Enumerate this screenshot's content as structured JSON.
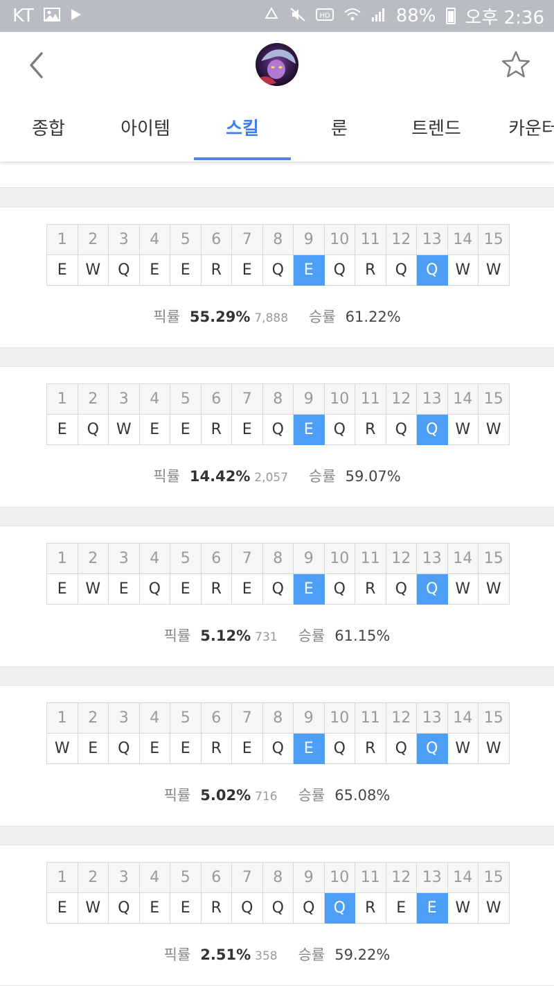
{
  "status_bar": {
    "carrier": "KT",
    "battery": "88%",
    "time": "오후 2:36",
    "colors": {
      "background": "#b9bdc3"
    }
  },
  "header": {
    "icons": {
      "back": "chevron-left-icon",
      "favorite": "star-outline-icon"
    },
    "avatar": "champion-avatar"
  },
  "tabs": [
    {
      "label": "종합",
      "active": false
    },
    {
      "label": "아이템",
      "active": false
    },
    {
      "label": "스킬",
      "active": true
    },
    {
      "label": "룬",
      "active": false
    },
    {
      "label": "트렌드",
      "active": false
    },
    {
      "label": "카운터",
      "active": false
    }
  ],
  "colors": {
    "accent": "#4b86e8",
    "highlight_cell": "#4c9ff5"
  },
  "labels": {
    "pick_rate": "픽률",
    "win_rate": "승률"
  },
  "skill_builds": [
    {
      "levels": [
        "1",
        "2",
        "3",
        "4",
        "5",
        "6",
        "7",
        "8",
        "9",
        "10",
        "11",
        "12",
        "13",
        "14",
        "15"
      ],
      "skills": [
        "E",
        "W",
        "Q",
        "E",
        "E",
        "R",
        "E",
        "Q",
        "E",
        "Q",
        "R",
        "Q",
        "Q",
        "W",
        "W"
      ],
      "highlighted_levels": [
        9,
        13
      ],
      "pick_rate": "55.29%",
      "games": "7,888",
      "win_rate": "61.22%"
    },
    {
      "levels": [
        "1",
        "2",
        "3",
        "4",
        "5",
        "6",
        "7",
        "8",
        "9",
        "10",
        "11",
        "12",
        "13",
        "14",
        "15"
      ],
      "skills": [
        "E",
        "Q",
        "W",
        "E",
        "E",
        "R",
        "E",
        "Q",
        "E",
        "Q",
        "R",
        "Q",
        "Q",
        "W",
        "W"
      ],
      "highlighted_levels": [
        9,
        13
      ],
      "pick_rate": "14.42%",
      "games": "2,057",
      "win_rate": "59.07%"
    },
    {
      "levels": [
        "1",
        "2",
        "3",
        "4",
        "5",
        "6",
        "7",
        "8",
        "9",
        "10",
        "11",
        "12",
        "13",
        "14",
        "15"
      ],
      "skills": [
        "E",
        "W",
        "E",
        "Q",
        "E",
        "R",
        "E",
        "Q",
        "E",
        "Q",
        "R",
        "Q",
        "Q",
        "W",
        "W"
      ],
      "highlighted_levels": [
        9,
        13
      ],
      "pick_rate": "5.12%",
      "games": "731",
      "win_rate": "61.15%"
    },
    {
      "levels": [
        "1",
        "2",
        "3",
        "4",
        "5",
        "6",
        "7",
        "8",
        "9",
        "10",
        "11",
        "12",
        "13",
        "14",
        "15"
      ],
      "skills": [
        "W",
        "E",
        "Q",
        "E",
        "E",
        "R",
        "E",
        "Q",
        "E",
        "Q",
        "R",
        "Q",
        "Q",
        "W",
        "W"
      ],
      "highlighted_levels": [
        9,
        13
      ],
      "pick_rate": "5.02%",
      "games": "716",
      "win_rate": "65.08%"
    },
    {
      "levels": [
        "1",
        "2",
        "3",
        "4",
        "5",
        "6",
        "7",
        "8",
        "9",
        "10",
        "11",
        "12",
        "13",
        "14",
        "15"
      ],
      "skills": [
        "E",
        "W",
        "Q",
        "E",
        "E",
        "R",
        "Q",
        "Q",
        "Q",
        "Q",
        "R",
        "E",
        "E",
        "W",
        "W"
      ],
      "highlighted_levels": [
        10,
        13
      ],
      "pick_rate": "2.51%",
      "games": "358",
      "win_rate": "59.22%"
    }
  ]
}
